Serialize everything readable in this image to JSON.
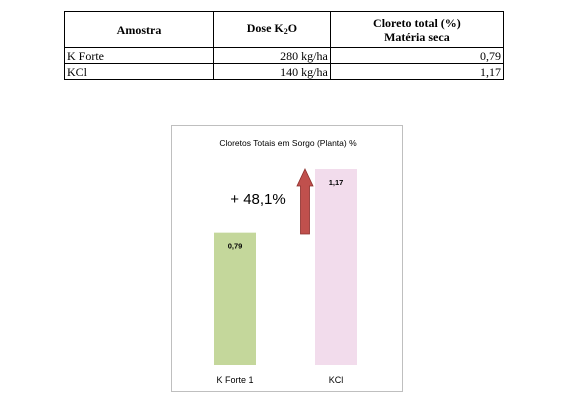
{
  "table": {
    "headers": {
      "sample": "Amostra",
      "dose_prefix": "Dose K",
      "dose_sub": "2",
      "dose_suffix": "O",
      "chloride_line1": "Cloreto total (%)",
      "chloride_line2": "Matéria seca"
    },
    "rows": [
      {
        "sample": "K Forte",
        "dose": "280 kg/ha",
        "chloride": "0,79"
      },
      {
        "sample": "KCl",
        "dose": "140 kg/ha",
        "chloride": "1,17"
      }
    ]
  },
  "chart_data": {
    "type": "bar",
    "title": "Cloretos Totais em Sorgo (Planta) %",
    "categories": [
      "K Forte 1",
      "KCl"
    ],
    "values": [
      0.79,
      1.17
    ],
    "value_labels": [
      "0,79",
      "1,17"
    ],
    "colors": [
      "#c4d79b",
      "#f2dcec"
    ],
    "ylim": [
      0,
      1.3
    ],
    "grid": false,
    "annotation": "+ 48,1%",
    "arrow_color": "#c0504d"
  }
}
